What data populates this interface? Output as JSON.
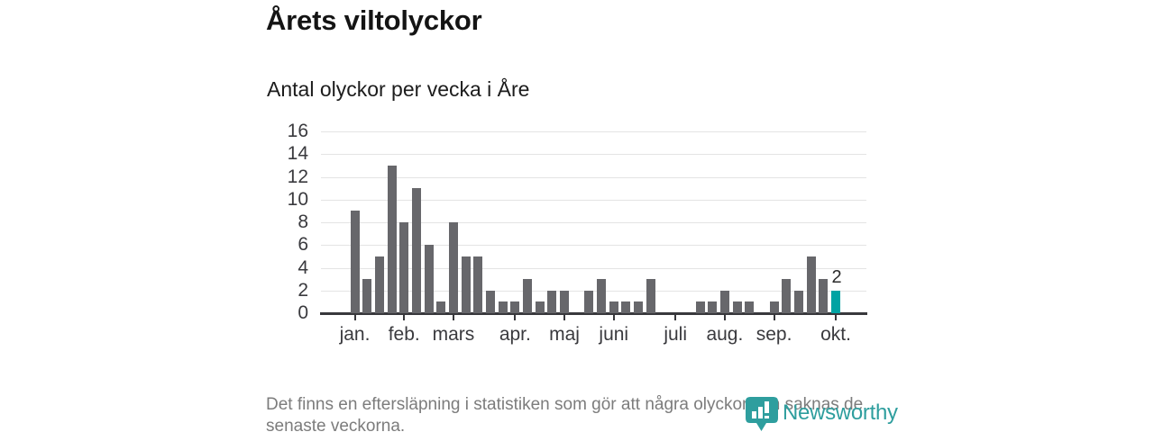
{
  "header": {
    "title": "Årets viltolyckor",
    "subtitle": "Antal olyckor per vecka i Åre"
  },
  "chart_data": {
    "type": "bar",
    "title": "Årets viltolyckor",
    "subtitle": "Antal olyckor per vecka i Åre",
    "x_unit": "week",
    "week_range": [
      1,
      40
    ],
    "values": [
      9,
      3,
      5,
      13,
      8,
      11,
      6,
      1,
      8,
      5,
      5,
      2,
      1,
      1,
      3,
      1,
      2,
      2,
      0,
      2,
      3,
      1,
      1,
      1,
      3,
      0,
      0,
      0,
      1,
      1,
      2,
      1,
      1,
      0,
      1,
      3,
      2,
      5,
      3,
      2
    ],
    "months": [
      {
        "label": "jan.",
        "week": 1
      },
      {
        "label": "feb.",
        "week": 5
      },
      {
        "label": "mars",
        "week": 9
      },
      {
        "label": "apr.",
        "week": 14
      },
      {
        "label": "maj",
        "week": 18
      },
      {
        "label": "juni",
        "week": 22
      },
      {
        "label": "juli",
        "week": 27
      },
      {
        "label": "aug.",
        "week": 31
      },
      {
        "label": "sep.",
        "week": 35
      },
      {
        "label": "okt.",
        "week": 40
      }
    ],
    "ylim": [
      0,
      16
    ],
    "yticks": [
      0,
      2,
      4,
      6,
      8,
      10,
      12,
      14,
      16
    ],
    "grid": "horizontal",
    "legend": "none",
    "bar_color": "#67676b",
    "highlight": {
      "week": 40,
      "value": 2,
      "label": "2",
      "color": "#00a3a3"
    }
  },
  "footnote": {
    "lines": [
      "Det finns en eftersläpning i statistiken som gör att några olyckor kan saknas de",
      "senaste veckorna."
    ]
  },
  "logo": {
    "wordmark": "Newsworthy",
    "color": "#2e9e9e",
    "icon": "newsworthy-pin-icon"
  }
}
